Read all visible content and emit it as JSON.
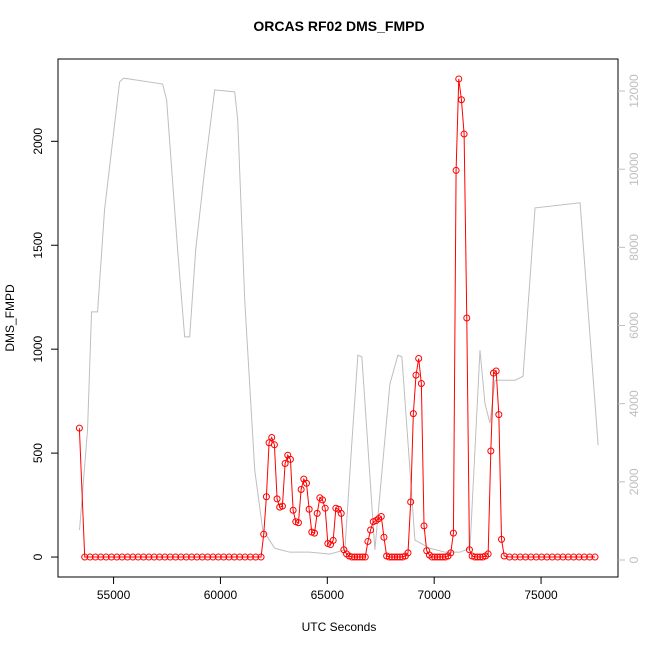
{
  "chart_data": {
    "type": "line",
    "title": "ORCAS RF02 DMS_FMPD",
    "x_label": "UTC Seconds",
    "y_label": "DMS_FMPD",
    "xlim": [
      52400,
      78600
    ],
    "xticks": [
      55000,
      60000,
      65000,
      70000,
      75000
    ],
    "ylim": [
      -96,
      2396
    ],
    "yticks": [
      0,
      500,
      1000,
      1500,
      2000
    ],
    "y2lim": [
      -435,
      12820
    ],
    "y2ticks": [
      0,
      2000,
      4000,
      6000,
      8000,
      10000,
      12000
    ],
    "series": [
      {
        "color": "#bebebe",
        "axis": "y2",
        "x": [
          53408,
          53782,
          53970,
          54251,
          54578,
          54906,
          55281,
          55468,
          57295,
          57482,
          57998,
          58326,
          58560,
          58841,
          59262,
          59731,
          60667,
          60808,
          61136,
          61604,
          61979,
          62541,
          63244,
          64180,
          65117,
          65820,
          66148,
          66429,
          66616,
          67225,
          67927,
          68302,
          68489,
          69098,
          69801,
          70504,
          71206,
          71675,
          72143,
          72377,
          72611,
          72845,
          73782,
          74157,
          74719,
          76827,
          77670
        ],
        "values": [
          770,
          3330,
          6350,
          6350,
          8960,
          10490,
          12230,
          12330,
          12180,
          11770,
          7930,
          5710,
          5710,
          7930,
          9980,
          12030,
          11980,
          11260,
          6650,
          2300,
          770,
          300,
          200,
          200,
          150,
          260,
          3000,
          5240,
          5200,
          260,
          4500,
          5240,
          5200,
          510,
          300,
          200,
          200,
          300,
          5370,
          4000,
          3500,
          4600,
          4600,
          4700,
          9010,
          9140,
          2940
        ]
      },
      {
        "color": "#ff0000",
        "marker": "circle",
        "x": [
          53400,
          53650,
          53900,
          54150,
          54400,
          54650,
          54900,
          55150,
          55400,
          55650,
          55900,
          56150,
          56400,
          56650,
          56900,
          57150,
          57400,
          57650,
          57900,
          58150,
          58400,
          58650,
          58900,
          59150,
          59400,
          59650,
          59900,
          60150,
          60400,
          60650,
          60900,
          61150,
          61400,
          61650,
          61900,
          62025,
          62150,
          62275,
          62400,
          62525,
          62650,
          62775,
          62900,
          63025,
          63150,
          63275,
          63400,
          63525,
          63650,
          63775,
          63900,
          64025,
          64150,
          64275,
          64400,
          64525,
          64650,
          64775,
          64900,
          65025,
          65150,
          65275,
          65400,
          65525,
          65650,
          65775,
          65900,
          66025,
          66150,
          66275,
          66400,
          66525,
          66650,
          66775,
          66900,
          67025,
          67150,
          67275,
          67400,
          67525,
          67650,
          67775,
          67900,
          68025,
          68150,
          68275,
          68400,
          68525,
          68650,
          68775,
          68900,
          69025,
          69150,
          69275,
          69400,
          69525,
          69650,
          69775,
          69900,
          70025,
          70150,
          70275,
          70400,
          70525,
          70650,
          70775,
          70900,
          71025,
          71150,
          71275,
          71400,
          71525,
          71650,
          71775,
          71900,
          72025,
          72150,
          72275,
          72400,
          72525,
          72650,
          72775,
          72900,
          73025,
          73150,
          73275,
          73525,
          73775,
          74025,
          74275,
          74525,
          74775,
          75025,
          75275,
          75525,
          75775,
          76025,
          76275,
          76525,
          76775,
          77025,
          77275,
          77525
        ],
        "values": [
          620,
          0,
          0,
          0,
          0,
          0,
          0,
          0,
          0,
          0,
          0,
          0,
          0,
          0,
          0,
          0,
          0,
          0,
          0,
          0,
          0,
          0,
          0,
          0,
          0,
          0,
          0,
          0,
          0,
          0,
          0,
          0,
          0,
          0,
          0,
          110,
          290,
          550,
          575,
          540,
          280,
          240,
          245,
          450,
          490,
          470,
          225,
          170,
          165,
          325,
          375,
          355,
          230,
          120,
          115,
          210,
          285,
          275,
          235,
          65,
          60,
          80,
          235,
          230,
          210,
          35,
          15,
          5,
          0,
          0,
          0,
          0,
          0,
          0,
          75,
          130,
          170,
          175,
          185,
          195,
          95,
          5,
          0,
          0,
          0,
          0,
          0,
          0,
          5,
          20,
          265,
          690,
          875,
          955,
          835,
          150,
          30,
          10,
          0,
          0,
          0,
          0,
          0,
          0,
          5,
          20,
          115,
          1860,
          2300,
          2200,
          2035,
          1150,
          35,
          5,
          0,
          0,
          0,
          0,
          5,
          15,
          510,
          885,
          895,
          685,
          85,
          5,
          0,
          0,
          0,
          0,
          0,
          0,
          0,
          0,
          0,
          0,
          0,
          0,
          0,
          0,
          0,
          0,
          0
        ]
      }
    ]
  }
}
